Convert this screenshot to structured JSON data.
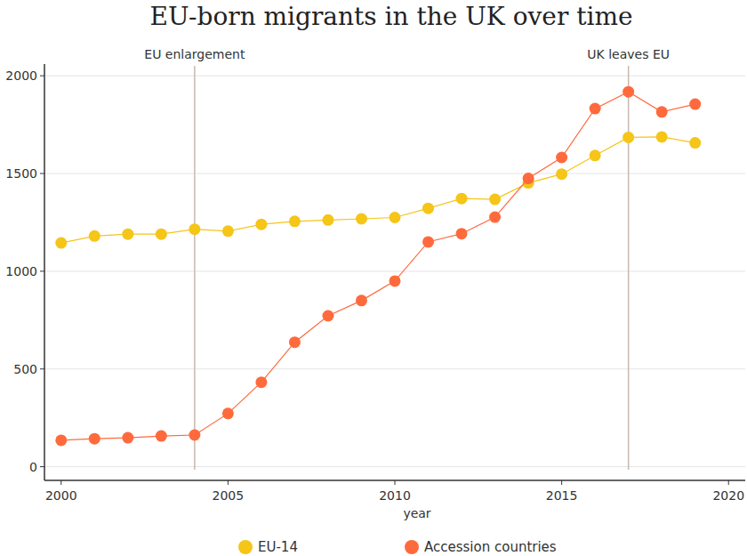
{
  "chart_data": {
    "type": "line",
    "title": "EU-born migrants in the UK over time",
    "x_label": "year",
    "x": [
      2000,
      2001,
      2002,
      2003,
      2004,
      2005,
      2006,
      2007,
      2008,
      2009,
      2010,
      2011,
      2012,
      2013,
      2014,
      2015,
      2016,
      2017,
      2018,
      2019
    ],
    "series": [
      {
        "name": "EU-14",
        "color": "#f5c518",
        "values": [
          1145,
          1180,
          1190,
          1190,
          1215,
          1205,
          1240,
          1255,
          1262,
          1268,
          1275,
          1322,
          1372,
          1368,
          1452,
          1497,
          1592,
          1685,
          1687,
          1657
        ]
      },
      {
        "name": "Accession countries",
        "color": "#ff6a3d",
        "values": [
          135,
          143,
          148,
          157,
          162,
          272,
          432,
          637,
          772,
          850,
          950,
          1150,
          1192,
          1277,
          1475,
          1582,
          1832,
          1918,
          1815,
          1855
        ]
      }
    ],
    "annotations": [
      {
        "x": 2004,
        "label": "EU enlargement"
      },
      {
        "x": 2017,
        "label": "UK leaves EU"
      }
    ],
    "xlim": [
      1999.5,
      2020.5
    ],
    "xticks": [
      2000,
      2005,
      2010,
      2015,
      2020
    ],
    "ylim": [
      -70,
      2060
    ],
    "yticks": [
      0,
      500,
      1000,
      1500,
      2000
    ],
    "grid": true,
    "legend": "bottom",
    "marker": "circle"
  }
}
